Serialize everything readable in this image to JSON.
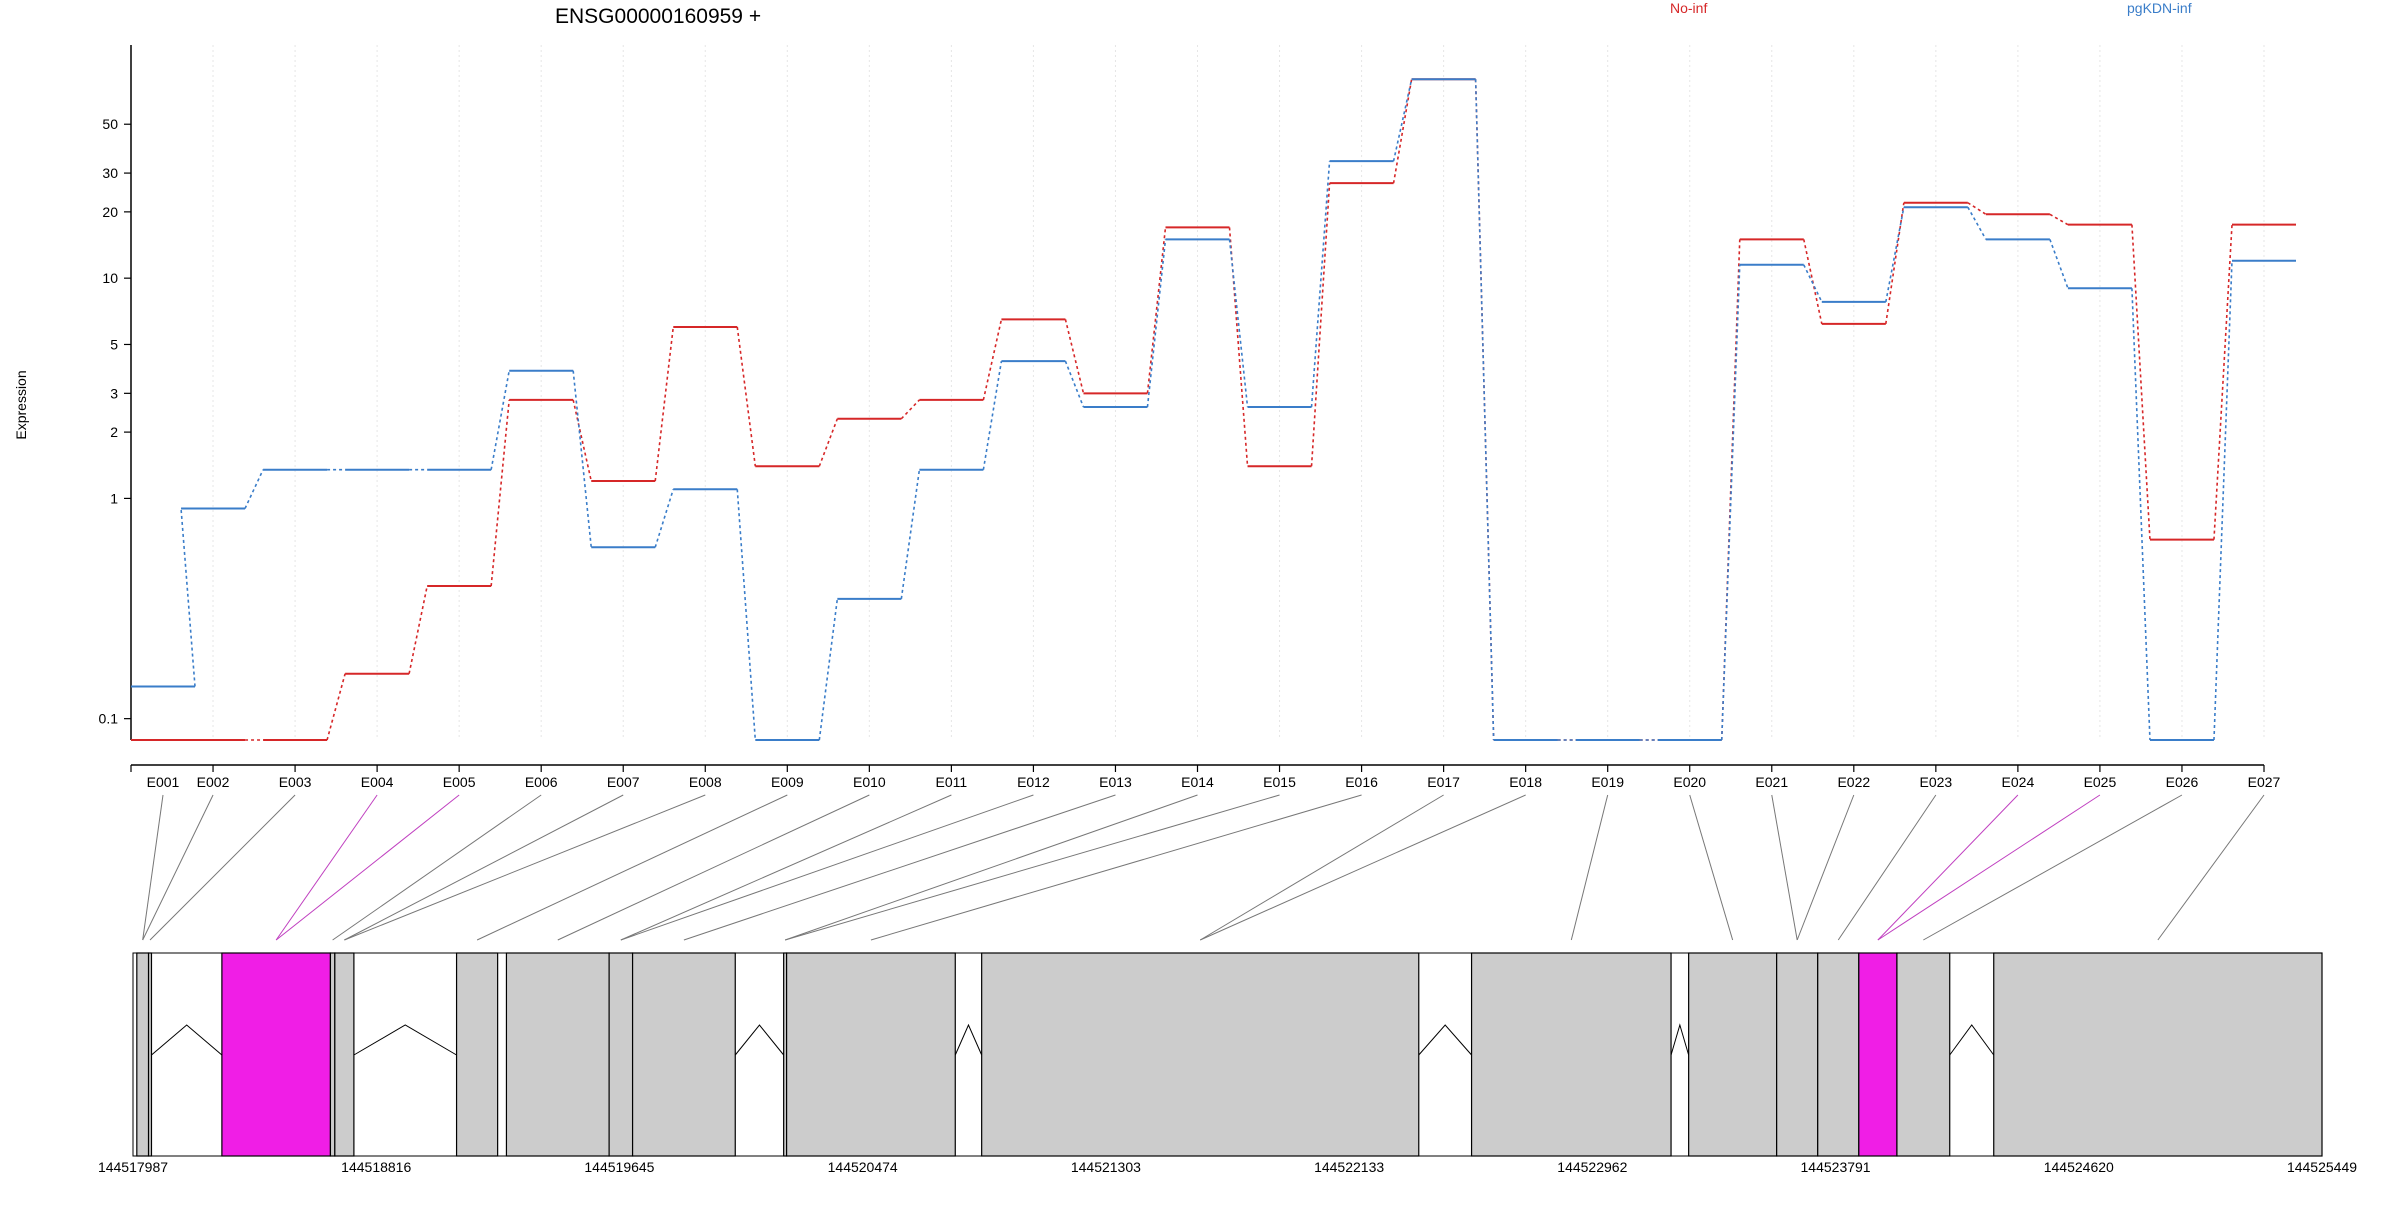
{
  "chart_data": {
    "type": "line",
    "title": "ENSG00000160959 +",
    "ylabel": "Expression",
    "xlabel": "",
    "y_scale": "log",
    "ylim": [
      0.08,
      90
    ],
    "yticks": [
      0.1,
      1,
      2,
      3,
      5,
      10,
      20,
      30,
      50
    ],
    "ytick_labels": [
      "0.1",
      "1",
      "2",
      "3",
      "5",
      "10",
      "20",
      "30",
      "50"
    ],
    "grid": "vertical light dotted",
    "legend_placement": "top",
    "categories": [
      "E001",
      "E002",
      "E003",
      "E004",
      "E005",
      "E006",
      "E007",
      "E008",
      "E009",
      "E010",
      "E011",
      "E012",
      "E013",
      "E014",
      "E015",
      "E016",
      "E017",
      "E018",
      "E019",
      "E020",
      "E021",
      "E022",
      "E023",
      "E024",
      "E025",
      "E026",
      "E027"
    ],
    "series": [
      {
        "name": "No-inf",
        "color": "#d62728",
        "values": [
          0.08,
          0.08,
          0.08,
          0.16,
          0.4,
          2.8,
          1.2,
          6.0,
          1.4,
          2.3,
          2.8,
          6.5,
          3.0,
          17,
          1.4,
          27,
          80,
          0.08,
          0.08,
          0.08,
          15,
          6.2,
          22,
          19.5,
          17.5,
          0.65,
          17.5
        ]
      },
      {
        "name": "pgKDN-inf",
        "color": "#3a7dc9",
        "values": [
          0.14,
          0.9,
          1.35,
          1.35,
          1.35,
          3.8,
          0.6,
          1.1,
          0.08,
          0.35,
          1.35,
          4.2,
          2.6,
          15,
          2.6,
          34,
          80,
          0.08,
          0.08,
          0.08,
          11.5,
          7.8,
          21,
          15,
          9.0,
          0.08,
          12
        ]
      }
    ],
    "gene_model": {
      "genomic_ticks": [
        "144517987",
        "144518816",
        "144519645",
        "144520474",
        "144521303",
        "144522133",
        "144522962",
        "144523791",
        "144524620",
        "144525449"
      ],
      "genomic_start": 144517987,
      "genomic_end": 144525449,
      "highlight_color": "#f01ee6",
      "exon_color": "#cccccc",
      "features": [
        {
          "id": "E001",
          "start": 144518000,
          "end": 144518040,
          "highlight": false
        },
        {
          "id": "E002",
          "start": 144518040,
          "end": 144518050,
          "highlight": false
        },
        {
          "id": "E003",
          "start": 144518290,
          "end": 144518660,
          "highlight": true
        },
        {
          "id": "E004",
          "start": 144518660,
          "end": 144518675,
          "highlight": false
        },
        {
          "id": "E005",
          "start": 144518675,
          "end": 144518740,
          "highlight": false
        },
        {
          "id": "E006",
          "start": 144519090,
          "end": 144519230,
          "highlight": false
        },
        {
          "id": "E007",
          "start": 144519260,
          "end": 144519610,
          "highlight": false
        },
        {
          "id": "E008",
          "start": 144519610,
          "end": 144519690,
          "highlight": false
        },
        {
          "id": "E009",
          "start": 144519690,
          "end": 144520040,
          "highlight": false
        },
        {
          "id": "E010",
          "start": 144520205,
          "end": 144520215,
          "highlight": false
        },
        {
          "id": "E011",
          "start": 144520215,
          "end": 144520790,
          "highlight": false
        },
        {
          "id": "E012",
          "start": 144520880,
          "end": 144522370,
          "highlight": false
        },
        {
          "id": "E013",
          "start": 144522550,
          "end": 144523230,
          "highlight": false
        },
        {
          "id": "E014",
          "start": 144523290,
          "end": 144523590,
          "highlight": false
        },
        {
          "id": "E015",
          "start": 144523590,
          "end": 144523730,
          "highlight": false
        },
        {
          "id": "E016",
          "start": 144523730,
          "end": 144523870,
          "highlight": false
        },
        {
          "id": "E017",
          "start": 144523870,
          "end": 144524000,
          "highlight": true
        },
        {
          "id": "E018",
          "start": 144524000,
          "end": 144524180,
          "highlight": false
        },
        {
          "id": "E019",
          "start": 144524330,
          "end": 144525449,
          "highlight": false
        }
      ]
    }
  }
}
